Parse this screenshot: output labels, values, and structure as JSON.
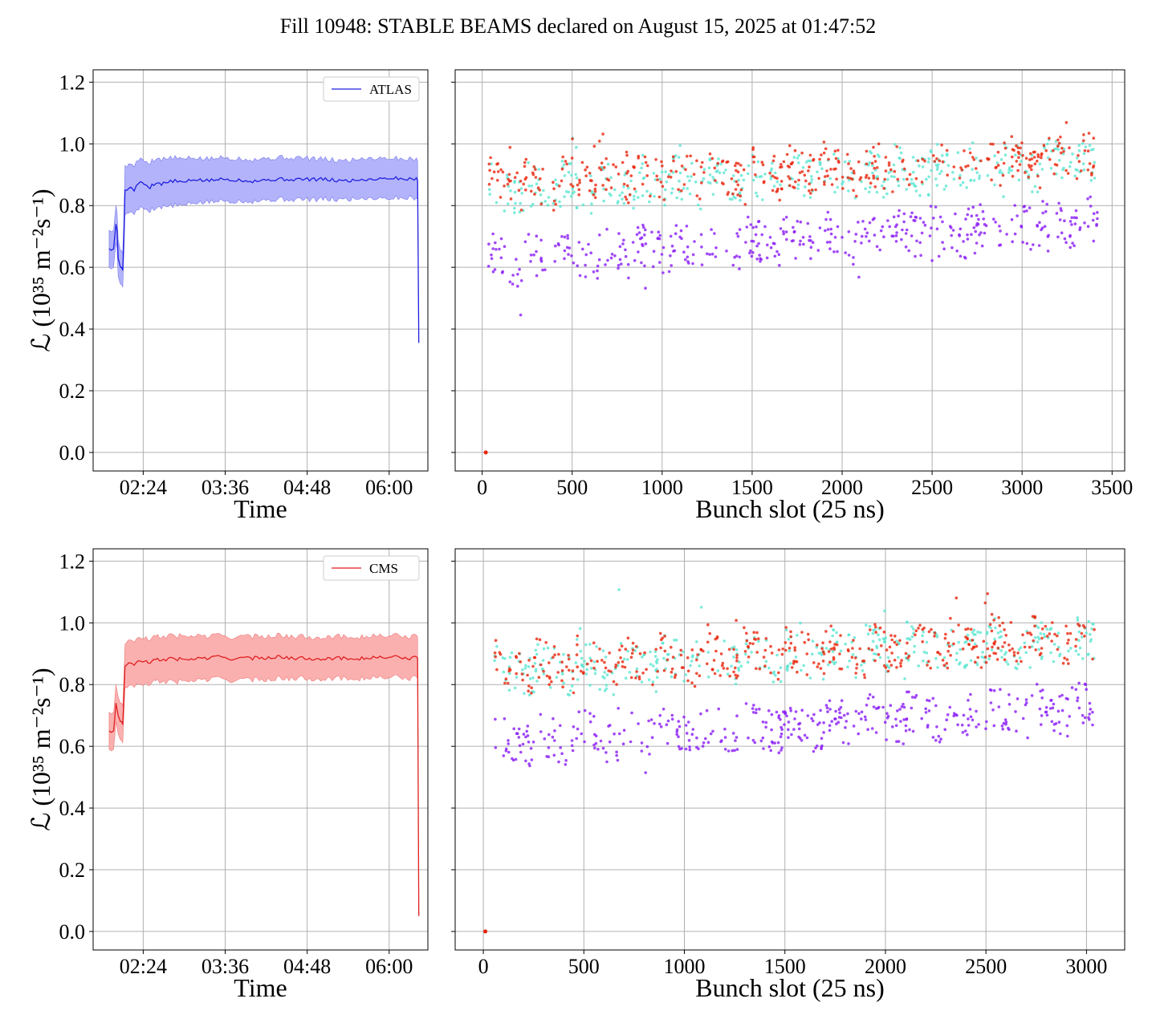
{
  "title": "Fill 10948: STABLE BEAMS declared on August 15, 2025 at 01:47:52",
  "colors": {
    "atlas_line": "#1f1fe0",
    "atlas_band": "#b3b3fb",
    "cms_line": "#e01f1f",
    "cms_band": "#fbb0b0",
    "bunch_high": "#e8250c",
    "bunch_mid": "#5ee6d2",
    "bunch_low": "#8a1cf5",
    "grid": "#b0b0b0"
  },
  "chart_data": [
    {
      "id": "atlas-time",
      "type": "line",
      "xlabel": "Time",
      "ylabel": "ℒ (10³⁵ m⁻²s⁻¹)",
      "x_ticks": [
        "02:24",
        "03:36",
        "04:48",
        "06:00"
      ],
      "x_tick_minutes": [
        144,
        216,
        288,
        360
      ],
      "xlim_minutes": [
        100,
        394
      ],
      "ylim": [
        -0.06,
        1.24
      ],
      "y_ticks": [
        "0.0",
        "0.2",
        "0.4",
        "0.6",
        "0.8",
        "1.0",
        "1.2"
      ],
      "grid": true,
      "legend": "top-right",
      "series": [
        {
          "name": "ATLAS",
          "x_minutes": [
            114,
            116,
            118,
            119,
            120,
            121,
            122,
            124,
            125,
            126,
            127,
            128,
            130,
            131,
            133,
            136,
            140,
            145,
            150,
            155,
            160,
            170,
            180,
            190,
            200,
            210,
            220,
            240,
            260,
            280,
            300,
            320,
            340,
            360,
            380,
            384,
            385,
            386
          ],
          "y": [
            0.66,
            0.655,
            0.66,
            0.7,
            0.74,
            0.72,
            0.63,
            0.6,
            0.6,
            0.59,
            0.7,
            0.85,
            0.85,
            0.855,
            0.86,
            0.85,
            0.875,
            0.87,
            0.86,
            0.875,
            0.87,
            0.88,
            0.875,
            0.885,
            0.88,
            0.885,
            0.885,
            0.88,
            0.885,
            0.885,
            0.885,
            0.88,
            0.885,
            0.89,
            0.885,
            0.89,
            0.88,
            0.355
          ],
          "band_low": [
            0.6,
            0.595,
            0.6,
            0.64,
            0.68,
            0.66,
            0.57,
            0.545,
            0.545,
            0.535,
            0.64,
            0.77,
            0.775,
            0.775,
            0.78,
            0.775,
            0.79,
            0.79,
            0.785,
            0.795,
            0.795,
            0.8,
            0.8,
            0.81,
            0.81,
            0.815,
            0.815,
            0.815,
            0.82,
            0.82,
            0.82,
            0.82,
            0.825,
            0.825,
            0.825,
            0.825,
            0.82,
            0.355
          ],
          "band_high": [
            0.72,
            0.715,
            0.72,
            0.76,
            0.8,
            0.78,
            0.69,
            0.655,
            0.655,
            0.645,
            0.76,
            0.93,
            0.925,
            0.935,
            0.935,
            0.93,
            0.95,
            0.945,
            0.94,
            0.955,
            0.95,
            0.955,
            0.95,
            0.955,
            0.95,
            0.955,
            0.955,
            0.95,
            0.955,
            0.955,
            0.95,
            0.945,
            0.955,
            0.955,
            0.95,
            0.955,
            0.945,
            0.355
          ]
        }
      ]
    },
    {
      "id": "atlas-bunch",
      "type": "scatter",
      "xlabel": "Bunch slot (25 ns)",
      "xlim": [
        -150,
        3570
      ],
      "x_ticks": [
        0,
        500,
        1000,
        1500,
        2000,
        2500,
        3000,
        3500
      ],
      "ylim": [
        -0.06,
        1.24
      ],
      "grid": true,
      "n_points_per_series": 420,
      "series": [
        {
          "name": "",
          "x_range": [
            30,
            3420
          ],
          "y_base": 0.84,
          "y_slope": 0.1,
          "y_spread": 0.07,
          "color_key": "bunch_mid"
        },
        {
          "name": "",
          "x_range": [
            30,
            3420
          ],
          "y_base": 0.86,
          "y_slope": 0.1,
          "y_spread": 0.07,
          "color_key": "bunch_high"
        },
        {
          "name": "",
          "x_range": [
            30,
            3420
          ],
          "y_base": 0.62,
          "y_slope": 0.13,
          "y_spread": 0.07,
          "color_key": "bunch_low"
        }
      ],
      "outlier_point": {
        "x": 20,
        "y": 0.0
      }
    },
    {
      "id": "cms-time",
      "type": "line",
      "xlabel": "Time",
      "ylabel": "ℒ (10³⁵ m⁻²s⁻¹)",
      "x_ticks": [
        "02:24",
        "03:36",
        "04:48",
        "06:00"
      ],
      "x_tick_minutes": [
        144,
        216,
        288,
        360
      ],
      "xlim_minutes": [
        100,
        394
      ],
      "ylim": [
        -0.06,
        1.24
      ],
      "y_ticks": [
        "0.0",
        "0.2",
        "0.4",
        "0.6",
        "0.8",
        "1.0",
        "1.2"
      ],
      "grid": true,
      "legend": "top-right",
      "series": [
        {
          "name": "CMS",
          "x_minutes": [
            114,
            116,
            118,
            119,
            120,
            121,
            122,
            124,
            125,
            126,
            127,
            128,
            130,
            131,
            133,
            136,
            140,
            145,
            150,
            155,
            160,
            170,
            180,
            190,
            200,
            210,
            220,
            240,
            260,
            280,
            300,
            320,
            340,
            360,
            380,
            384,
            385,
            386
          ],
          "y": [
            0.65,
            0.645,
            0.65,
            0.69,
            0.74,
            0.72,
            0.7,
            0.68,
            0.68,
            0.67,
            0.76,
            0.86,
            0.865,
            0.87,
            0.87,
            0.865,
            0.875,
            0.875,
            0.87,
            0.88,
            0.88,
            0.885,
            0.88,
            0.885,
            0.885,
            0.89,
            0.885,
            0.885,
            0.89,
            0.885,
            0.885,
            0.885,
            0.885,
            0.89,
            0.885,
            0.89,
            0.885,
            0.05
          ],
          "band_low": [
            0.59,
            0.585,
            0.59,
            0.63,
            0.68,
            0.66,
            0.64,
            0.62,
            0.62,
            0.61,
            0.7,
            0.79,
            0.79,
            0.795,
            0.8,
            0.795,
            0.8,
            0.8,
            0.8,
            0.81,
            0.81,
            0.81,
            0.81,
            0.815,
            0.815,
            0.82,
            0.815,
            0.815,
            0.82,
            0.82,
            0.82,
            0.82,
            0.82,
            0.825,
            0.82,
            0.825,
            0.82,
            0.05
          ],
          "band_high": [
            0.71,
            0.705,
            0.71,
            0.75,
            0.8,
            0.78,
            0.76,
            0.74,
            0.74,
            0.73,
            0.82,
            0.93,
            0.94,
            0.945,
            0.945,
            0.94,
            0.95,
            0.95,
            0.945,
            0.955,
            0.955,
            0.96,
            0.955,
            0.96,
            0.955,
            0.96,
            0.955,
            0.955,
            0.96,
            0.955,
            0.955,
            0.955,
            0.955,
            0.96,
            0.955,
            0.96,
            0.955,
            0.05
          ]
        }
      ]
    },
    {
      "id": "cms-bunch",
      "type": "scatter",
      "xlabel": "Bunch slot (25 ns)",
      "xlim": [
        -140,
        3190
      ],
      "x_ticks": [
        0,
        500,
        1000,
        1500,
        2000,
        2500,
        3000
      ],
      "ylim": [
        -0.06,
        1.24
      ],
      "grid": true,
      "n_points_per_series": 420,
      "series": [
        {
          "name": "",
          "x_range": [
            55,
            3040
          ],
          "y_base": 0.84,
          "y_slope": 0.1,
          "y_spread": 0.07,
          "color_key": "bunch_mid"
        },
        {
          "name": "",
          "x_range": [
            55,
            3040
          ],
          "y_base": 0.85,
          "y_slope": 0.1,
          "y_spread": 0.07,
          "color_key": "bunch_high"
        },
        {
          "name": "",
          "x_range": [
            55,
            3040
          ],
          "y_base": 0.61,
          "y_slope": 0.12,
          "y_spread": 0.07,
          "color_key": "bunch_low"
        }
      ],
      "outlier_point": {
        "x": 10,
        "y": 0.0
      }
    }
  ]
}
